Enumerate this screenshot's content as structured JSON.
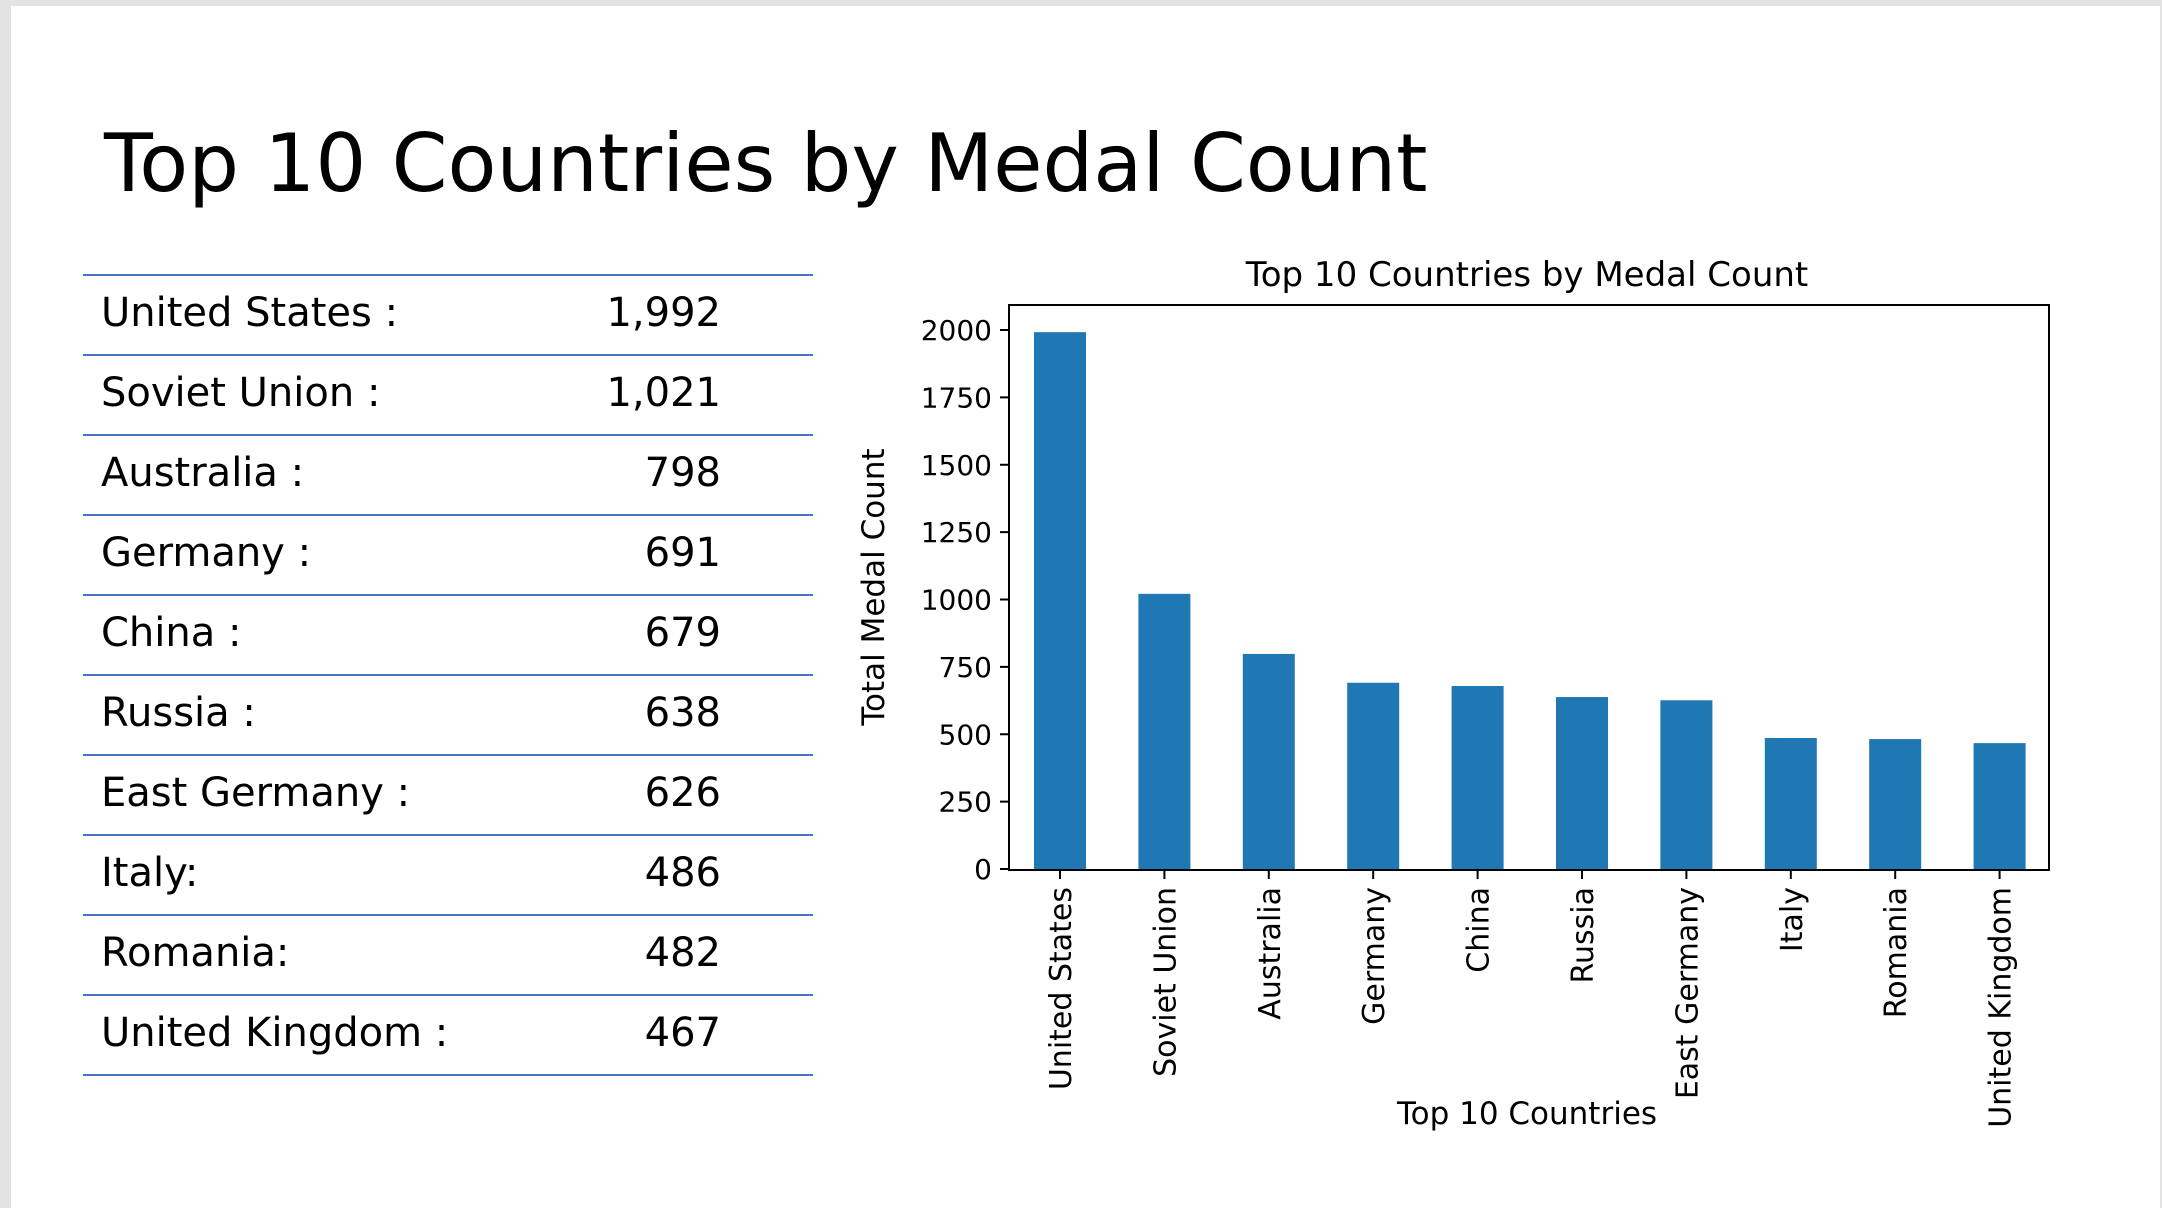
{
  "slide": {
    "title": "Top 10 Countries by Medal Count"
  },
  "table": {
    "rows": [
      {
        "country": "United States :",
        "value": "1,992"
      },
      {
        "country": "Soviet Union :",
        "value": "1,021"
      },
      {
        "country": "Australia :",
        "value": "798"
      },
      {
        "country": "Germany :",
        "value": "691"
      },
      {
        "country": "China :",
        "value": "679"
      },
      {
        "country": "Russia :",
        "value": "638"
      },
      {
        "country": "East Germany :",
        "value": "626"
      },
      {
        "country": "Italy:",
        "value": "486"
      },
      {
        "country": "Romania:",
        "value": "482"
      },
      {
        "country": "United Kingdom :",
        "value": "467"
      }
    ]
  },
  "chart_data": {
    "type": "bar",
    "title": "Top 10 Countries by Medal Count",
    "xlabel": "Top 10 Countries",
    "ylabel": "Total Medal Count",
    "categories": [
      "United States",
      "Soviet Union",
      "Australia",
      "Germany",
      "China",
      "Russia",
      "East Germany",
      "Italy",
      "Romania",
      "United Kingdom"
    ],
    "values": [
      1992,
      1021,
      798,
      691,
      679,
      638,
      626,
      486,
      482,
      467
    ],
    "yticks": [
      0,
      250,
      500,
      750,
      1000,
      1250,
      1500,
      1750,
      2000
    ],
    "ylim": [
      0,
      2100
    ],
    "bar_color": "#1f77b4",
    "grid": false,
    "legend": "none"
  }
}
